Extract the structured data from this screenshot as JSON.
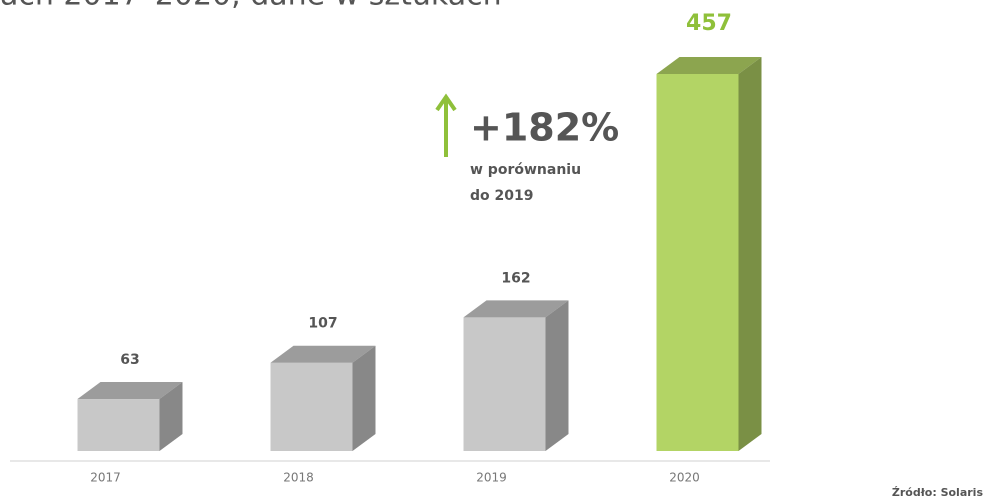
{
  "chart_data": {
    "type": "bar3d",
    "title": "ach 2017–2020, dane w sztukach",
    "categories": [
      "2017",
      "2018",
      "2019",
      "2020"
    ],
    "values": [
      63,
      107,
      162,
      457
    ],
    "colors": [
      "#c8c8c8",
      "#c8c8c8",
      "#c8c8c8",
      "#b3d465"
    ],
    "annotation": {
      "value": "+182%",
      "lines": [
        "w porównaniu",
        "do 2019"
      ]
    },
    "source": "Źródło: Solaris"
  }
}
